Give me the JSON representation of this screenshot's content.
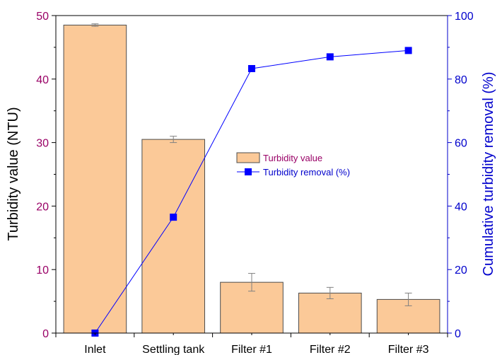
{
  "chart_data": {
    "type": "bar+line",
    "categories": [
      "Inlet",
      "Settling tank",
      "Filter #1",
      "Filter #2",
      "Filter #3"
    ],
    "series": [
      {
        "name": "Turbidity value",
        "type": "bar",
        "axis": "left",
        "values": [
          48.5,
          30.5,
          8.0,
          6.3,
          5.3
        ],
        "errors": [
          0.2,
          0.5,
          1.4,
          0.9,
          1.0
        ]
      },
      {
        "name": "Turbidity removal (%)",
        "type": "line",
        "axis": "right",
        "marker": "square",
        "values": [
          0,
          36.5,
          83.3,
          87.0,
          89.0
        ]
      }
    ],
    "ylabel": "Turbidity value (NTU)",
    "y2label": "Cumulative turbidity removal (%)",
    "ylim": [
      0,
      50
    ],
    "y2lim": [
      0,
      100
    ],
    "yticks": [
      0,
      10,
      20,
      30,
      40,
      50
    ],
    "y2ticks": [
      0,
      20,
      40,
      60,
      80,
      100
    ],
    "grid": false,
    "legend_position": "center"
  },
  "colors": {
    "bar_fill": "#FBC998",
    "bar_stroke": "#4d4d4d",
    "error_bar": "#808080",
    "left_axis": "#990066",
    "right_axis": "#0000CC",
    "line": "#0000FF"
  }
}
